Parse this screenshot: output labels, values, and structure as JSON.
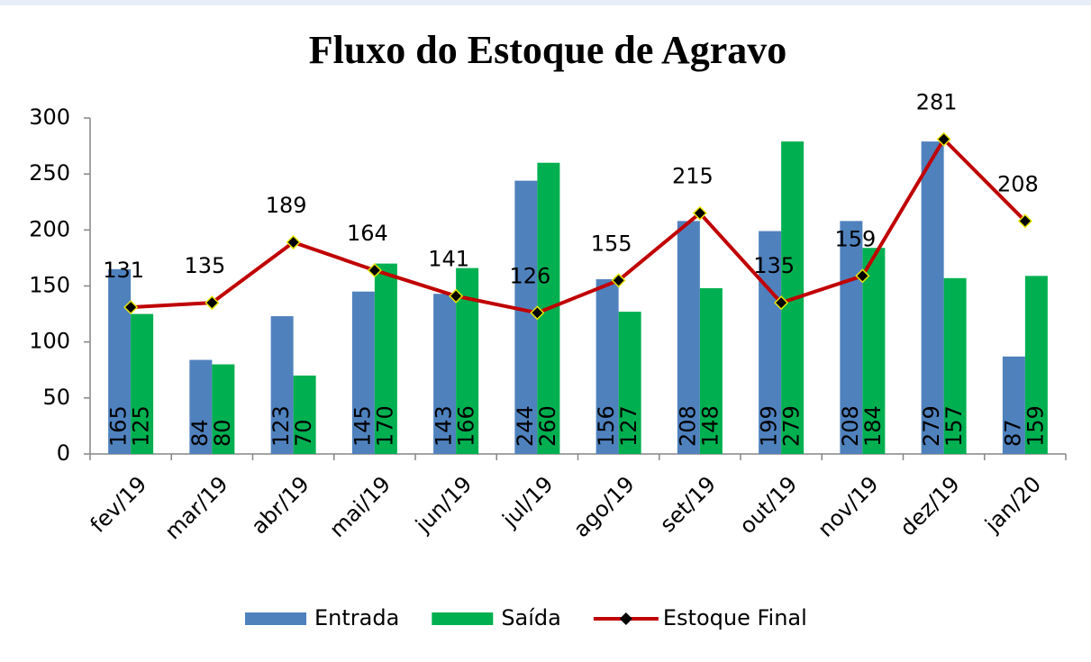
{
  "chart_data": {
    "type": "bar",
    "title": "Fluxo do Estoque de Agravo",
    "categories": [
      "fev/19",
      "mar/19",
      "abr/19",
      "mai/19",
      "jun/19",
      "jul/19",
      "ago/19",
      "set/19",
      "out/19",
      "nov/19",
      "dez/19",
      "jan/20"
    ],
    "series": [
      {
        "name": "Entrada",
        "type": "bar",
        "color": "#4f81bd",
        "values": [
          165,
          84,
          123,
          145,
          143,
          244,
          156,
          208,
          199,
          208,
          279,
          87
        ]
      },
      {
        "name": "Saída",
        "type": "bar",
        "color": "#00b050",
        "values": [
          125,
          80,
          70,
          170,
          166,
          260,
          127,
          148,
          279,
          184,
          157,
          159
        ]
      },
      {
        "name": "Estoque Final",
        "type": "line",
        "color": "#c00000",
        "values": [
          131,
          135,
          189,
          164,
          141,
          126,
          155,
          215,
          135,
          159,
          281,
          208
        ]
      }
    ],
    "ylim": [
      0,
      300
    ],
    "yticks": [
      0,
      50,
      100,
      150,
      200,
      250,
      300
    ],
    "grid": false,
    "legend": "bottom"
  }
}
